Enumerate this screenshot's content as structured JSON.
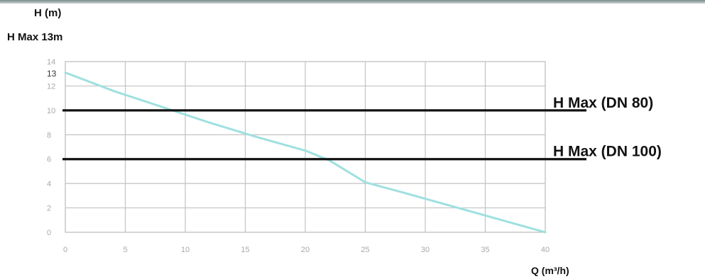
{
  "y_unit_label": "H (m)",
  "y_max_note": "H Max 13m",
  "x_unit_label": "Q (m³/h)",
  "chart_data": {
    "type": "line",
    "xlabel": "Q (m³/h)",
    "ylabel": "H (m)",
    "xlim": [
      0,
      40
    ],
    "ylim": [
      0,
      14
    ],
    "grid": true,
    "x_ticks": [
      "0",
      "5",
      "10",
      "15",
      "20",
      "25",
      "30",
      "35",
      "40"
    ],
    "y_ticks": [
      "0",
      "2",
      "4",
      "6",
      "8",
      "10",
      "12",
      "13",
      "14"
    ],
    "series": [
      {
        "color": "#9fe0e0",
        "x": [
          0,
          4,
          8,
          12,
          16,
          20,
          22,
          25,
          28,
          32,
          36,
          40
        ],
        "y": [
          13.1,
          11.6,
          10.3,
          9.0,
          7.8,
          6.7,
          5.9,
          4.1,
          3.3,
          2.2,
          1.1,
          0
        ]
      }
    ],
    "reference_lines": [
      {
        "label": "H Max (DN 80)",
        "y": 10,
        "color": "#111111"
      },
      {
        "label": "H Max (DN 100)",
        "y": 6,
        "color": "#111111"
      }
    ]
  }
}
